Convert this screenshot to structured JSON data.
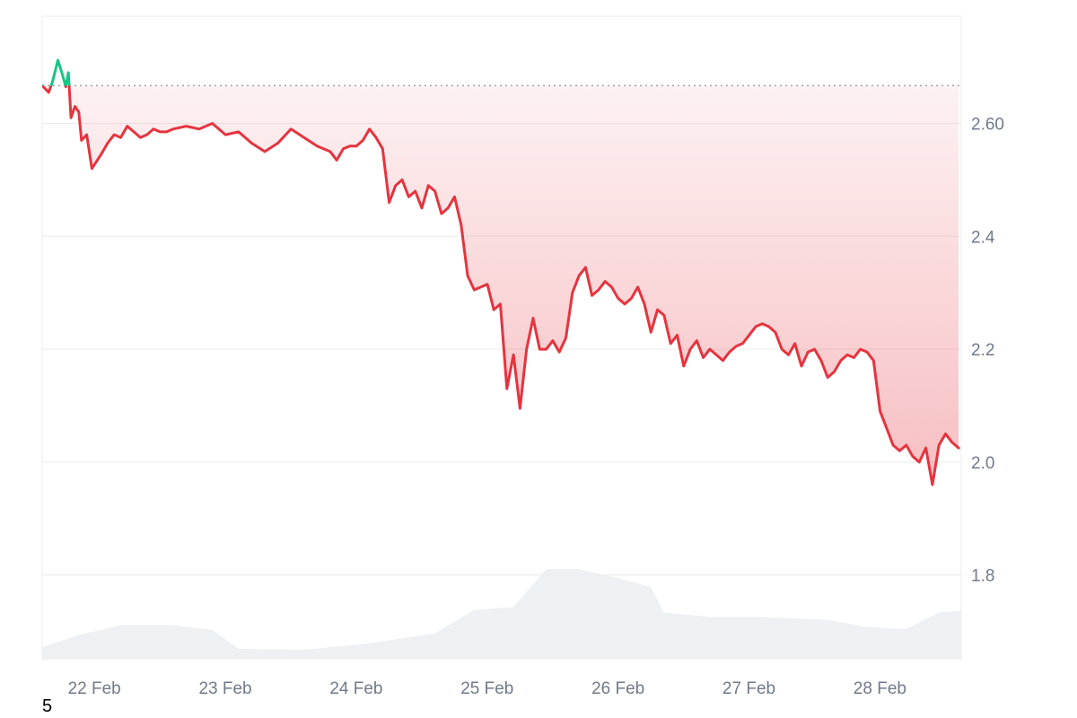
{
  "chart_data": {
    "type": "line",
    "title": "",
    "xlabel": "",
    "ylabel": "",
    "ylim": [
      1.65,
      2.79
    ],
    "grid": true,
    "legend": "none",
    "reference_value": 2.667,
    "colors": {
      "down": "#e5343f",
      "up": "#16c784",
      "grid": "#ececec",
      "axis_text": "#707a8a",
      "volume": "#eef1f4",
      "baseline": "#9aa3ad"
    },
    "y_ticks": [
      {
        "value": 2.6,
        "label": "2.60"
      },
      {
        "value": 2.4,
        "label": "2.4"
      },
      {
        "value": 2.2,
        "label": "2.2"
      },
      {
        "value": 2.0,
        "label": "2.0"
      },
      {
        "value": 1.8,
        "label": "1.8"
      }
    ],
    "x_ticks": [
      {
        "x": 0.1,
        "label": "22 Feb"
      },
      {
        "x": 1.1,
        "label": "23 Feb"
      },
      {
        "x": 2.1,
        "label": "24 Feb"
      },
      {
        "x": 3.1,
        "label": "25 Feb"
      },
      {
        "x": 4.1,
        "label": "26 Feb"
      },
      {
        "x": 5.1,
        "label": "27 Feb"
      },
      {
        "x": 6.1,
        "label": "28 Feb"
      }
    ],
    "x_range": [
      0,
      7.02
    ],
    "price_series": {
      "x": [
        0,
        0.05,
        0.08,
        0.12,
        0.15,
        0.18,
        0.2,
        0.22,
        0.25,
        0.28,
        0.3,
        0.34,
        0.38,
        0.45,
        0.5,
        0.55,
        0.6,
        0.65,
        0.7,
        0.75,
        0.8,
        0.85,
        0.9,
        0.95,
        1.0,
        1.1,
        1.2,
        1.3,
        1.4,
        1.5,
        1.6,
        1.7,
        1.8,
        1.9,
        2.0,
        2.1,
        2.2,
        2.25,
        2.3,
        2.35,
        2.4,
        2.45,
        2.5,
        2.55,
        2.6,
        2.65,
        2.7,
        2.75,
        2.8,
        2.85,
        2.9,
        2.95,
        3.0,
        3.05,
        3.1,
        3.15,
        3.2,
        3.25,
        3.3,
        3.35,
        3.4,
        3.45,
        3.5,
        3.55,
        3.6,
        3.65,
        3.7,
        3.75,
        3.8,
        3.85,
        3.9,
        3.95,
        4.0,
        4.05,
        4.1,
        4.15,
        4.2,
        4.25,
        4.3,
        4.35,
        4.4,
        4.45,
        4.5,
        4.55,
        4.6,
        4.65,
        4.7,
        4.75,
        4.8,
        4.85,
        4.9,
        4.95,
        5.0,
        5.05,
        5.1,
        5.15,
        5.2,
        5.25,
        5.3,
        5.35,
        5.4,
        5.45,
        5.5,
        5.55,
        5.6,
        5.65,
        5.7,
        5.75,
        5.8,
        5.85,
        5.9,
        5.95,
        6.0,
        6.05,
        6.1,
        6.15,
        6.2,
        6.25,
        6.3,
        6.35,
        6.4,
        6.45,
        6.5,
        6.55,
        6.6,
        6.65,
        6.7,
        6.75,
        6.8,
        6.85,
        6.9,
        6.95,
        7.0
      ],
      "y": [
        2.667,
        2.655,
        2.675,
        2.712,
        2.69,
        2.665,
        2.69,
        2.61,
        2.63,
        2.62,
        2.57,
        2.58,
        2.52,
        2.545,
        2.565,
        2.58,
        2.575,
        2.595,
        2.585,
        2.575,
        2.58,
        2.59,
        2.585,
        2.585,
        2.59,
        2.595,
        2.59,
        2.6,
        2.58,
        2.585,
        2.565,
        2.55,
        2.565,
        2.59,
        2.575,
        2.56,
        2.55,
        2.535,
        2.555,
        2.56,
        2.56,
        2.57,
        2.59,
        2.575,
        2.555,
        2.46,
        2.49,
        2.5,
        2.47,
        2.48,
        2.45,
        2.49,
        2.48,
        2.44,
        2.45,
        2.47,
        2.42,
        2.33,
        2.305,
        2.31,
        2.315,
        2.27,
        2.28,
        2.13,
        2.19,
        2.095,
        2.2,
        2.255,
        2.2,
        2.2,
        2.215,
        2.195,
        2.22,
        2.3,
        2.33,
        2.345,
        2.295,
        2.305,
        2.32,
        2.31,
        2.29,
        2.28,
        2.29,
        2.31,
        2.28,
        2.23,
        2.27,
        2.26,
        2.21,
        2.225,
        2.17,
        2.2,
        2.215,
        2.185,
        2.2,
        2.19,
        2.18,
        2.195,
        2.205,
        2.21,
        2.225,
        2.24,
        2.245,
        2.24,
        2.23,
        2.2,
        2.19,
        2.21,
        2.17,
        2.195,
        2.2,
        2.18,
        2.15,
        2.16,
        2.18,
        2.19,
        2.185,
        2.2,
        2.195,
        2.18,
        2.09,
        2.06,
        2.03,
        2.02,
        2.03,
        2.01,
        2.0,
        2.025,
        1.96,
        2.03,
        2.05,
        2.035,
        2.025
      ]
    },
    "volume_series": {
      "x": [
        0,
        0.3,
        0.6,
        1.0,
        1.3,
        1.5,
        2.0,
        2.5,
        3.0,
        3.3,
        3.6,
        3.85,
        4.1,
        4.4,
        4.65,
        4.75,
        5.1,
        5.5,
        6.0,
        6.3,
        6.6,
        6.85,
        7.02
      ],
      "y": [
        0.14,
        0.28,
        0.38,
        0.38,
        0.33,
        0.12,
        0.11,
        0.18,
        0.29,
        0.55,
        0.58,
        1.0,
        1.0,
        0.9,
        0.8,
        0.52,
        0.47,
        0.47,
        0.44,
        0.36,
        0.34,
        0.52,
        0.54
      ]
    }
  },
  "footnote": "5"
}
